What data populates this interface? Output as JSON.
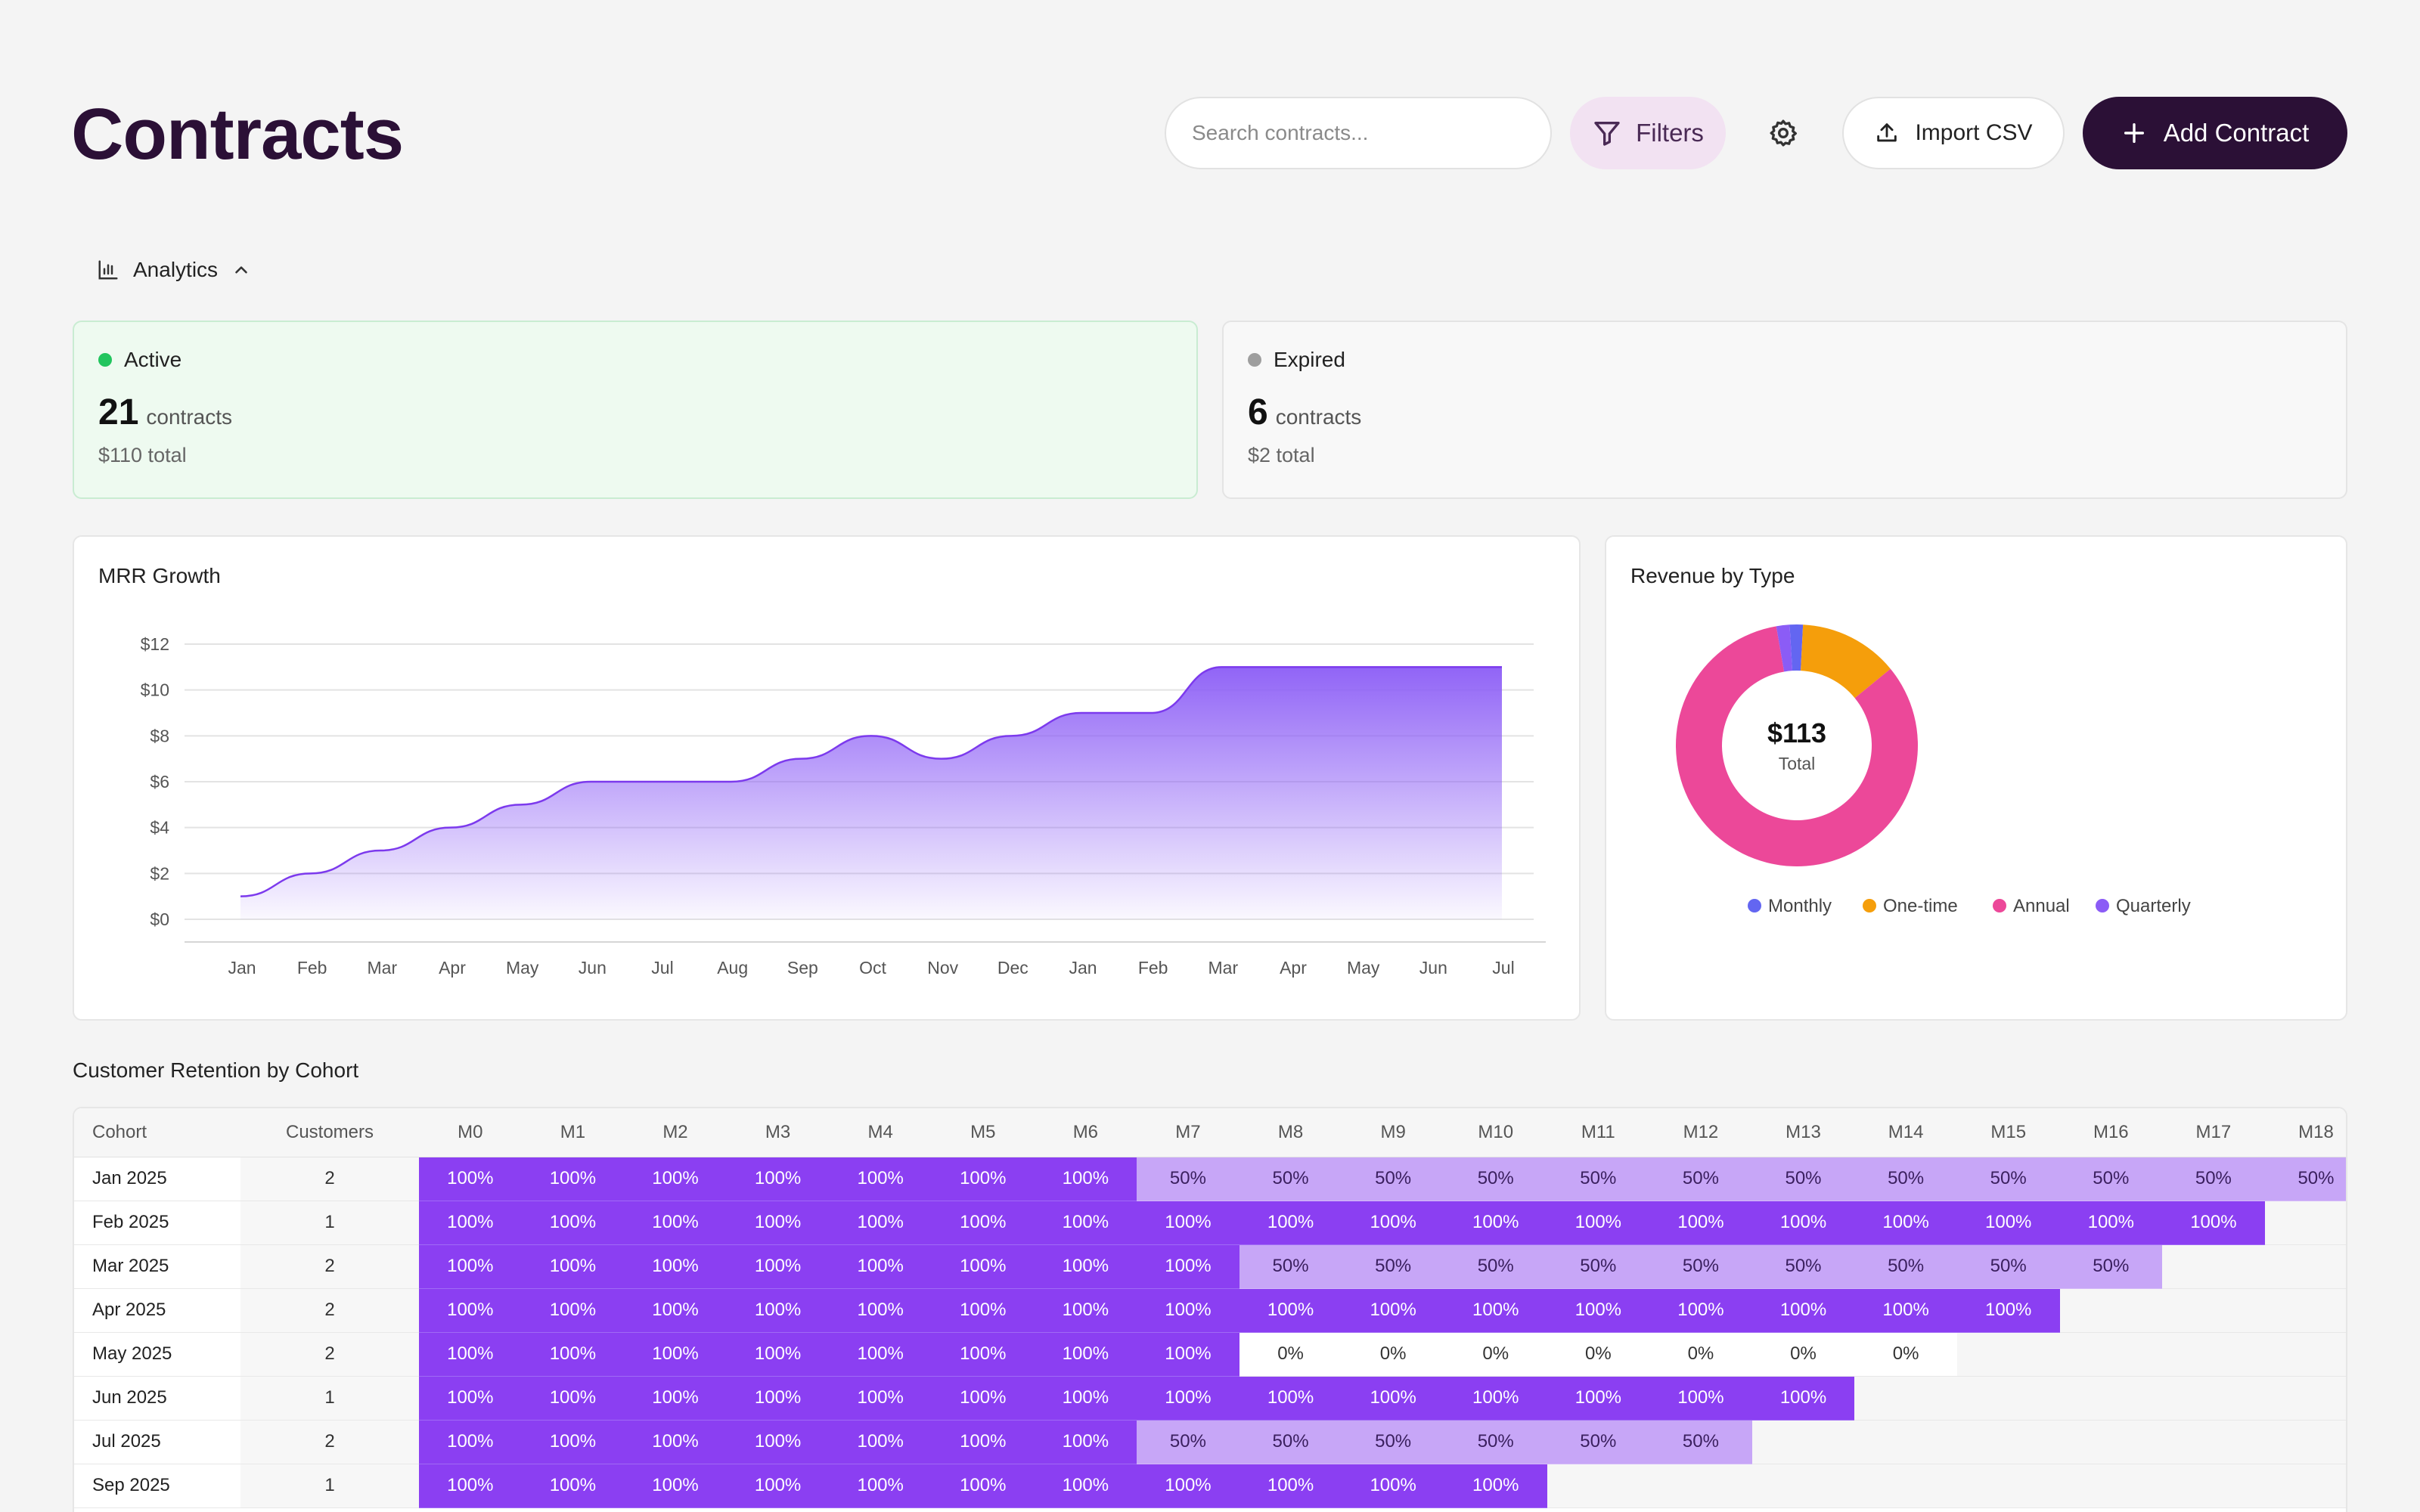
{
  "header": {
    "title": "Contracts",
    "search_placeholder": "Search contracts...",
    "filters_label": "Filters",
    "import_label": "Import CSV",
    "add_label": "Add Contract"
  },
  "analytics": {
    "toggle_label": "Analytics"
  },
  "stats": {
    "active": {
      "label": "Active",
      "count": "21",
      "unit": "contracts",
      "total": "$110 total",
      "color": "#22c55e"
    },
    "expired": {
      "label": "Expired",
      "count": "6",
      "unit": "contracts",
      "total": "$2 total",
      "color": "#9e9e9e"
    }
  },
  "mrr": {
    "title": "MRR Growth"
  },
  "revenue": {
    "title": "Revenue by Type",
    "center_value": "$113",
    "center_label": "Total"
  },
  "chart_data": [
    {
      "type": "area",
      "title": "MRR Growth",
      "x": [
        "Jan",
        "Feb",
        "Mar",
        "Apr",
        "May",
        "Jun",
        "Jul",
        "Aug",
        "Sep",
        "Oct",
        "Nov",
        "Dec",
        "Jan",
        "Feb",
        "Mar",
        "Apr",
        "May",
        "Jun",
        "Jul"
      ],
      "y_ticks": [
        "$0",
        "$2",
        "$4",
        "$6",
        "$8",
        "$10",
        "$12"
      ],
      "ylim": [
        0,
        12
      ],
      "values": [
        1,
        2,
        3,
        4,
        5,
        6,
        6,
        6,
        7,
        8,
        7,
        8,
        9,
        9,
        11,
        11,
        11,
        11,
        11
      ],
      "color": "#8b5cf6",
      "grid": true
    },
    {
      "type": "pie",
      "title": "Revenue by Type",
      "labels": [
        "Monthly",
        "One-time",
        "Annual",
        "Quarterly"
      ],
      "values": [
        2,
        15,
        94,
        2
      ],
      "colors": [
        "#6366f1",
        "#f59e0b",
        "#ec4899",
        "#8b5cf6"
      ],
      "legend": "bottom"
    }
  ],
  "cohort": {
    "title": "Customer Retention by Cohort",
    "headers": [
      "Cohort",
      "Customers",
      "M0",
      "M1",
      "M2",
      "M3",
      "M4",
      "M5",
      "M6",
      "M7",
      "M8",
      "M9",
      "M10",
      "M11",
      "M12",
      "M13",
      "M14",
      "M15",
      "M16",
      "M17",
      "M18"
    ],
    "rows": [
      {
        "cohort": "Jan 2025",
        "customers": "2",
        "values": [
          "100%",
          "100%",
          "100%",
          "100%",
          "100%",
          "100%",
          "100%",
          "50%",
          "50%",
          "50%",
          "50%",
          "50%",
          "50%",
          "50%",
          "50%",
          "50%",
          "50%",
          "50%",
          "50%"
        ]
      },
      {
        "cohort": "Feb 2025",
        "customers": "1",
        "values": [
          "100%",
          "100%",
          "100%",
          "100%",
          "100%",
          "100%",
          "100%",
          "100%",
          "100%",
          "100%",
          "100%",
          "100%",
          "100%",
          "100%",
          "100%",
          "100%",
          "100%",
          "100%"
        ]
      },
      {
        "cohort": "Mar 2025",
        "customers": "2",
        "values": [
          "100%",
          "100%",
          "100%",
          "100%",
          "100%",
          "100%",
          "100%",
          "100%",
          "50%",
          "50%",
          "50%",
          "50%",
          "50%",
          "50%",
          "50%",
          "50%",
          "50%"
        ]
      },
      {
        "cohort": "Apr 2025",
        "customers": "2",
        "values": [
          "100%",
          "100%",
          "100%",
          "100%",
          "100%",
          "100%",
          "100%",
          "100%",
          "100%",
          "100%",
          "100%",
          "100%",
          "100%",
          "100%",
          "100%",
          "100%"
        ]
      },
      {
        "cohort": "May 2025",
        "customers": "2",
        "values": [
          "100%",
          "100%",
          "100%",
          "100%",
          "100%",
          "100%",
          "100%",
          "100%",
          "0%",
          "0%",
          "0%",
          "0%",
          "0%",
          "0%",
          "0%"
        ]
      },
      {
        "cohort": "Jun 2025",
        "customers": "1",
        "values": [
          "100%",
          "100%",
          "100%",
          "100%",
          "100%",
          "100%",
          "100%",
          "100%",
          "100%",
          "100%",
          "100%",
          "100%",
          "100%",
          "100%"
        ]
      },
      {
        "cohort": "Jul 2025",
        "customers": "2",
        "values": [
          "100%",
          "100%",
          "100%",
          "100%",
          "100%",
          "100%",
          "100%",
          "50%",
          "50%",
          "50%",
          "50%",
          "50%",
          "50%"
        ]
      },
      {
        "cohort": "Sep 2025",
        "customers": "1",
        "values": [
          "100%",
          "100%",
          "100%",
          "100%",
          "100%",
          "100%",
          "100%",
          "100%",
          "100%",
          "100%",
          "100%"
        ]
      }
    ]
  }
}
